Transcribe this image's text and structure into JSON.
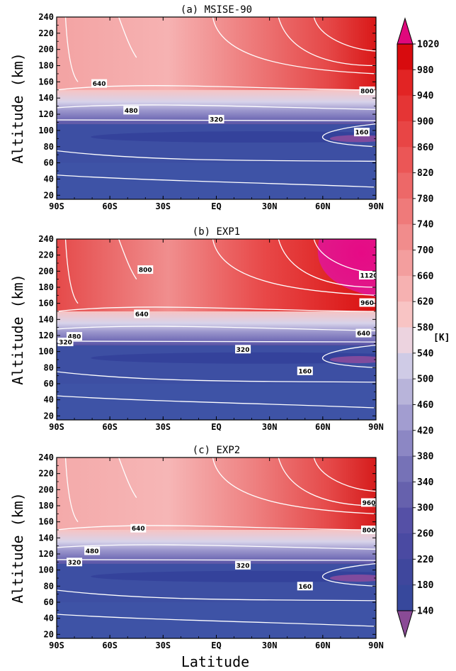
{
  "chart_data": [
    {
      "type": "contour",
      "title": "(a) MSISE-90",
      "xlabel": "",
      "ylabel": "Altitude (km)",
      "xticks": [
        "90S",
        "60S",
        "30S",
        "EQ",
        "30N",
        "60N",
        "90N"
      ],
      "yticks": [
        20,
        40,
        60,
        80,
        100,
        120,
        140,
        160,
        180,
        200,
        220,
        240
      ],
      "ylim": [
        15,
        240
      ],
      "contour_labels": [
        {
          "text": "640",
          "lat": -66,
          "alt": 158
        },
        {
          "text": "480",
          "lat": -48,
          "alt": 125
        },
        {
          "text": "320",
          "lat": 0,
          "alt": 114
        },
        {
          "text": "800",
          "lat": 85,
          "alt": 149
        },
        {
          "text": "160",
          "lat": 82,
          "alt": 98
        }
      ]
    },
    {
      "type": "contour",
      "title": "(b) EXP1",
      "xlabel": "",
      "ylabel": "Altitude (km)",
      "xticks": [
        "90S",
        "60S",
        "30S",
        "EQ",
        "30N",
        "60N",
        "90N"
      ],
      "yticks": [
        20,
        40,
        60,
        80,
        100,
        120,
        140,
        160,
        180,
        200,
        220,
        240
      ],
      "ylim": [
        15,
        240
      ],
      "contour_labels": [
        {
          "text": "800",
          "lat": -40,
          "alt": 202
        },
        {
          "text": "640",
          "lat": -42,
          "alt": 147
        },
        {
          "text": "480",
          "lat": -80,
          "alt": 119
        },
        {
          "text": "320",
          "lat": -85,
          "alt": 112
        },
        {
          "text": "320",
          "lat": 15,
          "alt": 103
        },
        {
          "text": "1120",
          "lat": 86,
          "alt": 195
        },
        {
          "text": "960",
          "lat": 85,
          "alt": 161
        },
        {
          "text": "640",
          "lat": 83,
          "alt": 123
        },
        {
          "text": "160",
          "lat": 50,
          "alt": 76
        }
      ]
    },
    {
      "type": "contour",
      "title": "(c) EXP2",
      "xlabel": "Latitude",
      "ylabel": "Altitude (km)",
      "xticks": [
        "90S",
        "60S",
        "30S",
        "EQ",
        "30N",
        "60N",
        "90N"
      ],
      "yticks": [
        20,
        40,
        60,
        80,
        100,
        120,
        140,
        160,
        180,
        200,
        220,
        240
      ],
      "ylim": [
        15,
        240
      ],
      "contour_labels": [
        {
          "text": "640",
          "lat": -44,
          "alt": 152
        },
        {
          "text": "480",
          "lat": -70,
          "alt": 124
        },
        {
          "text": "320",
          "lat": -80,
          "alt": 110
        },
        {
          "text": "320",
          "lat": 15,
          "alt": 106
        },
        {
          "text": "960",
          "lat": 86,
          "alt": 184
        },
        {
          "text": "800",
          "lat": 86,
          "alt": 150
        },
        {
          "text": "160",
          "lat": 50,
          "alt": 80
        }
      ]
    }
  ],
  "colorbar": {
    "unit": "[K]",
    "labels": [
      "1020",
      "980",
      "940",
      "900",
      "860",
      "820",
      "780",
      "740",
      "700",
      "660",
      "620",
      "580",
      "540",
      "500",
      "460",
      "420",
      "380",
      "340",
      "300",
      "260",
      "220",
      "180",
      "140"
    ],
    "colors": [
      "#d80b0e",
      "#e22424",
      "#e53535",
      "#e84545",
      "#eb5656",
      "#ed6868",
      "#ef7a7a",
      "#f18c8c",
      "#f39e9e",
      "#f6b1b1",
      "#f8c4c4",
      "#ecd3df",
      "#cfcbe6",
      "#b8b4da",
      "#a29dd0",
      "#8c87c4",
      "#7672b7",
      "#6661ad",
      "#5550a6",
      "#4a4aa2",
      "#3f479d",
      "#37489c"
    ],
    "extend_high": "#e0087c",
    "extend_low": "#8a4b96"
  }
}
